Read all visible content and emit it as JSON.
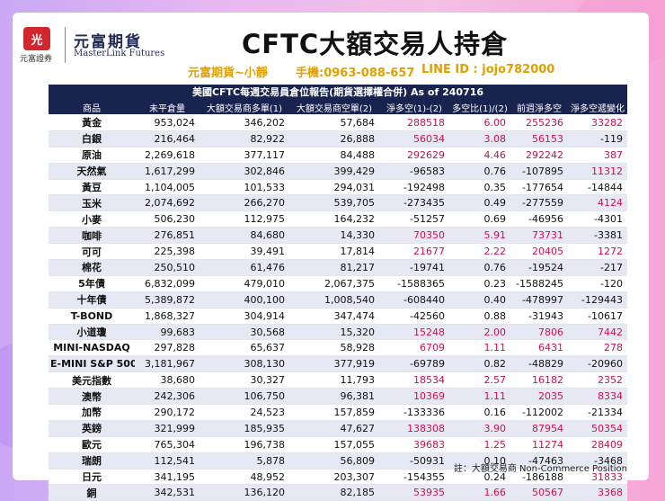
{
  "brand": {
    "logo_mark": "光",
    "logo_sub": "元富證券",
    "name_cn": "元富期貨",
    "name_en": "MasterLink Futures"
  },
  "title": "CFTC大額交易人持倉",
  "contact": {
    "agent": "元富期貨~小靜",
    "phone": "手機:0963-088-657",
    "line": "LINE ID : jojo782000"
  },
  "table": {
    "caption": "美國CFTC每週交易員倉位報告(期貨選擇權合併) As of  240716",
    "headers": [
      "商品",
      "未平倉量",
      "大額交易商多單(1)",
      "大額交易商空單(2)",
      "淨多空(1)-(2)",
      "多空比(1)/(2)",
      "前週淨多空",
      "淨多空遞變化"
    ],
    "rows": [
      [
        "黃金",
        "953,024",
        "346,202",
        "57,684",
        "288518",
        "6.00",
        "255236",
        "33282"
      ],
      [
        "白銀",
        "216,464",
        "82,922",
        "26,888",
        "56034",
        "3.08",
        "56153",
        "-119"
      ],
      [
        "原油",
        "2,269,618",
        "377,117",
        "84,488",
        "292629",
        "4.46",
        "292242",
        "387"
      ],
      [
        "天然氣",
        "1,617,299",
        "302,846",
        "399,429",
        "-96583",
        "0.76",
        "-107895",
        "11312"
      ],
      [
        "黃豆",
        "1,104,005",
        "101,533",
        "294,031",
        "-192498",
        "0.35",
        "-177654",
        "-14844"
      ],
      [
        "玉米",
        "2,074,692",
        "266,270",
        "539,705",
        "-273435",
        "0.49",
        "-277559",
        "4124"
      ],
      [
        "小麥",
        "506,230",
        "112,975",
        "164,232",
        "-51257",
        "0.69",
        "-46956",
        "-4301"
      ],
      [
        "咖啡",
        "276,851",
        "84,680",
        "14,330",
        "70350",
        "5.91",
        "73731",
        "-3381"
      ],
      [
        "可可",
        "225,398",
        "39,491",
        "17,814",
        "21677",
        "2.22",
        "20405",
        "1272"
      ],
      [
        "棉花",
        "250,510",
        "61,476",
        "81,217",
        "-19741",
        "0.76",
        "-19524",
        "-217"
      ],
      [
        "5年債",
        "6,832,099",
        "479,010",
        "2,067,375",
        "-1588365",
        "0.23",
        "-1588245",
        "-120"
      ],
      [
        "十年債",
        "5,389,872",
        "400,100",
        "1,008,540",
        "-608440",
        "0.40",
        "-478997",
        "-129443"
      ],
      [
        "T-BOND",
        "1,868,327",
        "304,914",
        "347,474",
        "-42560",
        "0.88",
        "-31943",
        "-10617"
      ],
      [
        "小道瓊",
        "99,683",
        "30,568",
        "15,320",
        "15248",
        "2.00",
        "7806",
        "7442"
      ],
      [
        "MINI-NASDAQ",
        "297,828",
        "65,637",
        "58,928",
        "6709",
        "1.11",
        "6431",
        "278"
      ],
      [
        "E-MINI S&P 500",
        "3,181,967",
        "308,130",
        "377,919",
        "-69789",
        "0.82",
        "-48829",
        "-20960"
      ],
      [
        "美元指數",
        "38,680",
        "30,327",
        "11,793",
        "18534",
        "2.57",
        "16182",
        "2352"
      ],
      [
        "澳幣",
        "242,306",
        "106,750",
        "96,381",
        "10369",
        "1.11",
        "2035",
        "8334"
      ],
      [
        "加幣",
        "290,172",
        "24,523",
        "157,859",
        "-133336",
        "0.16",
        "-112002",
        "-21334"
      ],
      [
        "英鎊",
        "321,999",
        "185,935",
        "47,627",
        "138308",
        "3.90",
        "87954",
        "50354"
      ],
      [
        "歐元",
        "765,304",
        "196,738",
        "157,055",
        "39683",
        "1.25",
        "11274",
        "28409"
      ],
      [
        "瑞朗",
        "112,541",
        "5,878",
        "56,809",
        "-50931",
        "0.10",
        "-47463",
        "-3468"
      ],
      [
        "日元",
        "341,195",
        "48,952",
        "203,307",
        "-154355",
        "0.24",
        "-186188",
        "31833"
      ],
      [
        "銅",
        "342,531",
        "136,120",
        "82,185",
        "53935",
        "1.66",
        "50567",
        "3368"
      ]
    ]
  },
  "note": "註：大額交易商 Non-Commerce Position",
  "colors": {
    "header_bg": "#18234f",
    "positive": "#d0104a",
    "accent": "#e0a000"
  }
}
